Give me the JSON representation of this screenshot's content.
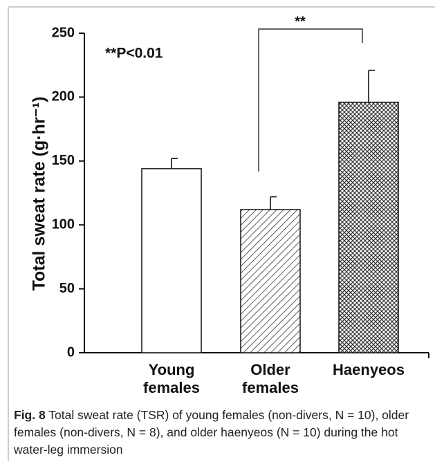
{
  "chart_data": {
    "type": "bar",
    "ylabel": "Total sweat rate (g·hr⁻¹)",
    "annotation": "**P<0.01",
    "significance": "**",
    "categories": [
      "Young females",
      "Older females",
      "Haenyeos"
    ],
    "values": [
      144,
      112,
      196
    ],
    "errors": [
      8,
      10,
      25
    ],
    "color": "#ffffff",
    "bar_patterns": [
      "none",
      "hatch",
      "crosshatch"
    ],
    "ylim": [
      0,
      250
    ],
    "yticks": [
      0,
      50,
      100,
      150,
      200,
      250
    ],
    "grid": false
  },
  "caption": {
    "label": "Fig. 8",
    "text": "Total sweat rate (TSR) of young females (non-divers, N = 10), older females (non-divers, N = 8), and older haenyeos (N = 10) during the hot water-leg immersion"
  }
}
